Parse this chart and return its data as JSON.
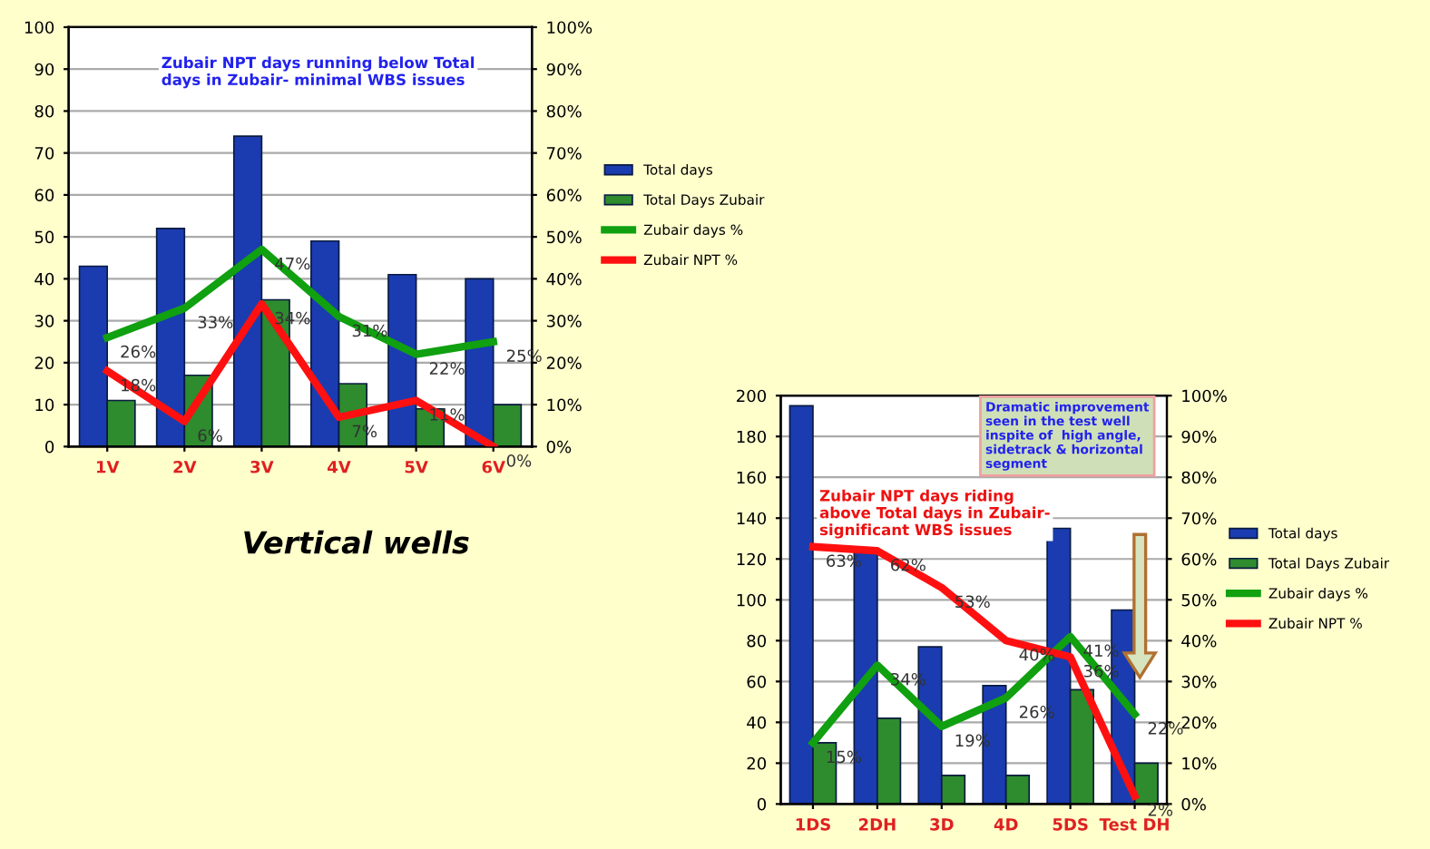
{
  "chart_data": [
    {
      "type": "bar",
      "categories": [
        "1V",
        "2V",
        "3V",
        "4V",
        "5V",
        "6V"
      ],
      "ylim": [
        0,
        100
      ],
      "yticks": [
        0,
        10,
        20,
        30,
        40,
        50,
        60,
        70,
        80,
        90,
        100
      ],
      "y2lim": [
        0,
        100
      ],
      "y2ticks": [
        {
          "value": 0,
          "label": "0%"
        },
        {
          "value": 10,
          "label": "10%"
        },
        {
          "value": 20,
          "label": "20%"
        },
        {
          "value": 30,
          "label": "30%"
        },
        {
          "value": 40,
          "label": "40%"
        },
        {
          "value": 50,
          "label": "50%"
        },
        {
          "value": 60,
          "label": "60%"
        },
        {
          "value": 70,
          "label": "70%"
        },
        {
          "value": 80,
          "label": "80%"
        },
        {
          "value": 90,
          "label": "90%"
        },
        {
          "value": 100,
          "label": "100%"
        }
      ],
      "grid": "y",
      "legend": "right",
      "marker": "none",
      "series": [
        {
          "name": "Total days",
          "color": "#1a3cb0",
          "values": [
            43,
            52,
            74,
            49,
            41,
            40
          ]
        },
        {
          "name": "Total Days Zubair",
          "color": "#2e8b2e",
          "values": [
            11,
            17,
            35,
            15,
            9,
            10
          ]
        },
        {
          "name": "Zubair days %",
          "type": "line",
          "axis": "y2",
          "color": "#10a010",
          "values": [
            26,
            33,
            47,
            31,
            22,
            25
          ],
          "value_labels": [
            "26%",
            "33%",
            "47%",
            "31%",
            "22%",
            "25%"
          ]
        },
        {
          "name": "Zubair NPT %",
          "type": "line",
          "axis": "y2",
          "color": "#ff1010",
          "values": [
            18,
            6,
            34,
            7,
            11,
            0
          ],
          "value_labels": [
            "18%",
            "6%",
            "34%",
            "7%",
            "11%",
            "0%"
          ]
        }
      ],
      "annotations": [
        "Zubair NPT days running below Total\ndays in Zubair- minimal WBS issues",
        "Vertical wells"
      ]
    },
    {
      "type": "bar",
      "categories": [
        "1DS",
        "2DH",
        "3D",
        "4D",
        "5DS",
        "Test DH"
      ],
      "ylim": [
        0,
        200
      ],
      "yticks": [
        0,
        20,
        40,
        60,
        80,
        100,
        120,
        140,
        160,
        180,
        200
      ],
      "y2lim": [
        0,
        100
      ],
      "y2ticks": [
        {
          "value": 0,
          "label": "0%"
        },
        {
          "value": 10,
          "label": "10%"
        },
        {
          "value": 20,
          "label": "20%"
        },
        {
          "value": 30,
          "label": "30%"
        },
        {
          "value": 40,
          "label": "40%"
        },
        {
          "value": 50,
          "label": "50%"
        },
        {
          "value": 60,
          "label": "60%"
        },
        {
          "value": 70,
          "label": "70%"
        },
        {
          "value": 80,
          "label": "80%"
        },
        {
          "value": 90,
          "label": "90%"
        },
        {
          "value": 100,
          "label": "100%"
        }
      ],
      "grid": "y",
      "legend": "right",
      "marker": "none",
      "series": [
        {
          "name": "Total days",
          "color": "#1a3cb0",
          "values": [
            195,
            124,
            77,
            58,
            135,
            95
          ]
        },
        {
          "name": "Total Days Zubair",
          "color": "#2e8b2e",
          "values": [
            30,
            42,
            14,
            14,
            56,
            20
          ]
        },
        {
          "name": "Zubair days %",
          "type": "line",
          "axis": "y2",
          "color": "#10a010",
          "values": [
            15,
            34,
            19,
            26,
            41,
            22
          ],
          "value_labels": [
            "15%",
            "34%",
            "19%",
            "26%",
            "41%",
            "22%"
          ]
        },
        {
          "name": "Zubair NPT %",
          "type": "line",
          "axis": "y2",
          "color": "#ff1010",
          "values": [
            63,
            62,
            53,
            40,
            36,
            2
          ],
          "value_labels": [
            "63%",
            "62%",
            "53%",
            "40%",
            "36%",
            "2%"
          ]
        }
      ],
      "annotations": [
        "Zubair NPT days riding\nabove Total days in Zubair-\nsignificant WBS issues",
        "Dramatic improvement\nseen in the test well\ninspite of  high angle,\nsidetrack & horizontal\nsegment"
      ]
    }
  ]
}
